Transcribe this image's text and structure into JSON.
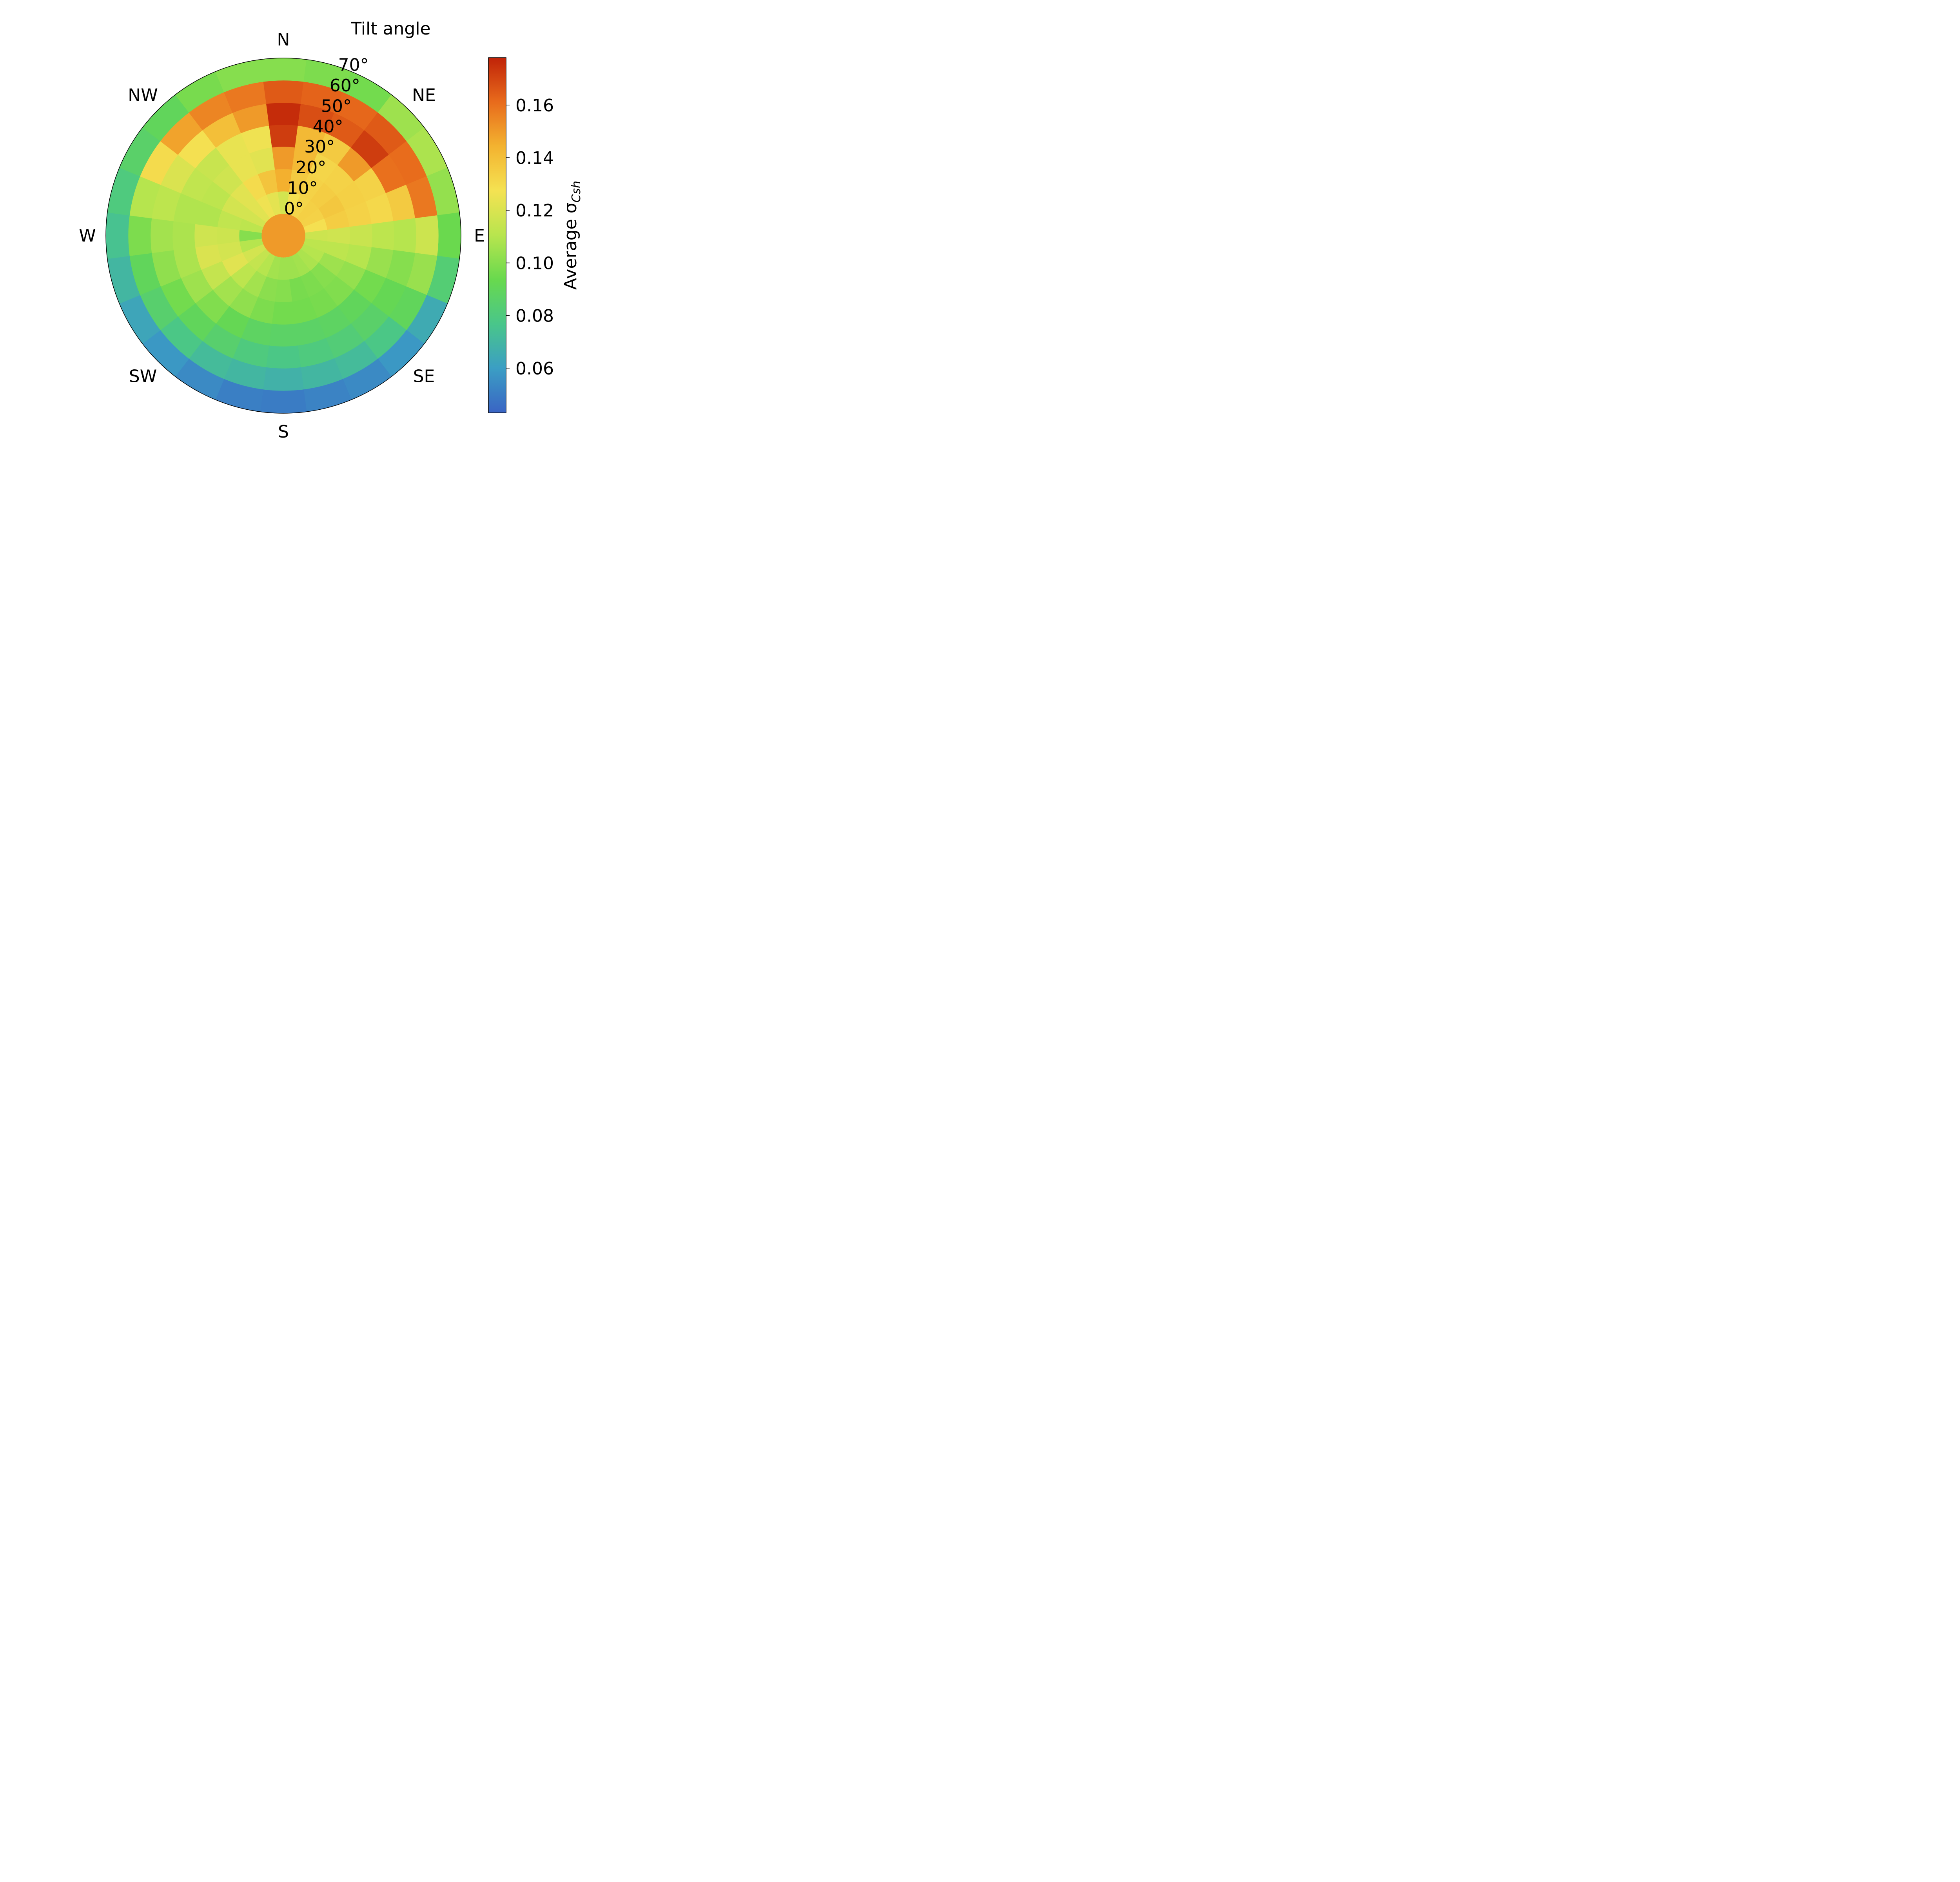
{
  "chart_data": {
    "type": "heatmap",
    "title": "",
    "radial_axis_title": "Tilt angle",
    "azimuth_labels": [
      "N",
      "NE",
      "E",
      "SE",
      "S",
      "SW",
      "W",
      "NW"
    ],
    "tilt_tick_labels": [
      "0°",
      "10°",
      "20°",
      "30°",
      "40°",
      "50°",
      "60°",
      "70°"
    ],
    "tilt_deg": [
      0,
      10,
      20,
      30,
      40,
      50,
      60,
      70
    ],
    "azimuth_deg": [
      0,
      15,
      30,
      45,
      60,
      75,
      90,
      105,
      120,
      135,
      150,
      165,
      180,
      195,
      210,
      225,
      240,
      255,
      270,
      285,
      300,
      315,
      330,
      345
    ],
    "values": [
      [
        0.15,
        0.15,
        0.15,
        0.15,
        0.15,
        0.15,
        0.15,
        0.15,
        0.15,
        0.15,
        0.15,
        0.15,
        0.15,
        0.15,
        0.15,
        0.15,
        0.15,
        0.15,
        0.15,
        0.15,
        0.15,
        0.15,
        0.15,
        0.15
      ],
      [
        0.118,
        0.128,
        0.132,
        0.134,
        0.133,
        0.128,
        0.116,
        0.112,
        0.11,
        0.108,
        0.106,
        0.105,
        0.105,
        0.106,
        0.11,
        0.114,
        0.118,
        0.11,
        0.1,
        0.112,
        0.118,
        0.122,
        0.126,
        0.123
      ],
      [
        0.145,
        0.136,
        0.133,
        0.135,
        0.137,
        0.135,
        0.117,
        0.112,
        0.105,
        0.1,
        0.098,
        0.097,
        0.1,
        0.101,
        0.106,
        0.112,
        0.122,
        0.118,
        0.116,
        0.113,
        0.118,
        0.122,
        0.13,
        0.138
      ],
      [
        0.15,
        0.142,
        0.132,
        0.133,
        0.134,
        0.133,
        0.115,
        0.11,
        0.103,
        0.099,
        0.097,
        0.096,
        0.096,
        0.098,
        0.102,
        0.106,
        0.114,
        0.12,
        0.117,
        0.109,
        0.112,
        0.117,
        0.124,
        0.122
      ],
      [
        0.172,
        0.142,
        0.136,
        0.15,
        0.133,
        0.131,
        0.112,
        0.104,
        0.096,
        0.09,
        0.088,
        0.087,
        0.087,
        0.088,
        0.092,
        0.099,
        0.105,
        0.108,
        0.108,
        0.109,
        0.113,
        0.115,
        0.124,
        0.126
      ],
      [
        0.176,
        0.168,
        0.165,
        0.172,
        0.16,
        0.136,
        0.11,
        0.1,
        0.092,
        0.086,
        0.082,
        0.08,
        0.078,
        0.08,
        0.085,
        0.09,
        0.096,
        0.102,
        0.106,
        0.112,
        0.12,
        0.128,
        0.14,
        0.15
      ],
      [
        0.165,
        0.163,
        0.162,
        0.165,
        0.161,
        0.158,
        0.116,
        0.104,
        0.09,
        0.078,
        0.072,
        0.07,
        0.068,
        0.07,
        0.072,
        0.078,
        0.085,
        0.09,
        0.098,
        0.11,
        0.13,
        0.148,
        0.155,
        0.158
      ],
      [
        0.1,
        0.098,
        0.096,
        0.105,
        0.108,
        0.103,
        0.094,
        0.083,
        0.065,
        0.058,
        0.054,
        0.052,
        0.05,
        0.051,
        0.054,
        0.058,
        0.063,
        0.07,
        0.075,
        0.08,
        0.086,
        0.09,
        0.097,
        0.1
      ]
    ],
    "colorbar": {
      "label": "Average σ",
      "label_subscript": "Csh",
      "min": 0.043,
      "max": 0.178,
      "ticks": [
        0.06,
        0.08,
        0.1,
        0.12,
        0.14,
        0.16
      ],
      "tick_labels": [
        "0.06",
        "0.08",
        "0.10",
        "0.12",
        "0.14",
        "0.16"
      ],
      "colormap": [
        "#3a64c4",
        "#3b9ec4",
        "#49c68a",
        "#68d94e",
        "#b8e54e",
        "#f4e252",
        "#f3b330",
        "#e86b1c",
        "#c02308"
      ]
    },
    "grid": false,
    "legend": "none"
  }
}
